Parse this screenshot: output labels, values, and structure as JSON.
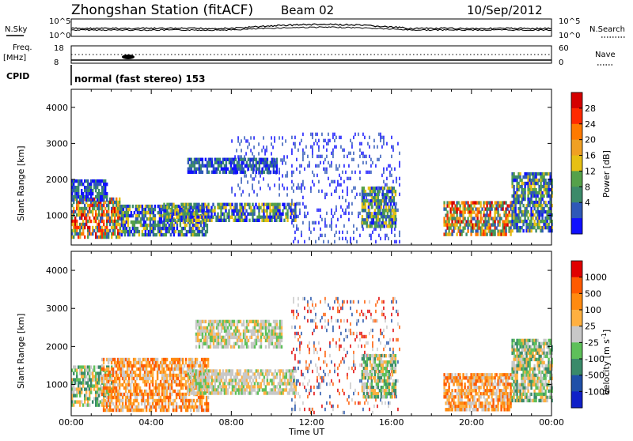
{
  "header": {
    "title": "Zhongshan Station (fitACF)",
    "beam": "Beam 02",
    "date": "10/Sep/2012"
  },
  "top_panels": {
    "nsky_label": "N.Sky",
    "nsky_ticks": [
      "10^5",
      "10^0"
    ],
    "nsearch_label": "N.Search",
    "nsearch_ticks": [
      "10^5",
      "10^0"
    ],
    "freq_label": "Freq.",
    "freq_unit": "[MHz]",
    "freq_ticks": [
      "18",
      "8"
    ],
    "nave_label": "Nave",
    "nave_ticks": [
      "60",
      "0"
    ],
    "cpid_label": "CPID",
    "cpid_text": "normal (fast stereo) 153"
  },
  "chart_data": [
    {
      "type": "heatmap",
      "name": "power",
      "ylabel": "Slant Range [km]",
      "ylim": [
        180,
        4500
      ],
      "yticks": [
        "1000",
        "2000",
        "3000",
        "4000"
      ],
      "xlim": [
        0,
        24
      ],
      "colorbar_label": "Power [dB]",
      "colorbar_ticks": [
        "4",
        "8",
        "12",
        "16",
        "20",
        "24",
        "28"
      ],
      "colorbar_colors": [
        "#1010ff",
        "#2f58b8",
        "#3c8a6a",
        "#55a14a",
        "#e6c014",
        "#f0a024",
        "#ff7a00",
        "#ff2a00",
        "#d40000"
      ],
      "regions": [
        {
          "t0": 0.0,
          "t1": 2.4,
          "r0": 400,
          "r1": 1500,
          "level": "high"
        },
        {
          "t0": 2.4,
          "t1": 6.8,
          "r0": 450,
          "r1": 1300,
          "level": "mid"
        },
        {
          "t0": 0.0,
          "t1": 1.8,
          "r0": 1400,
          "r1": 2000,
          "level": "low"
        },
        {
          "t0": 4.6,
          "t1": 11.2,
          "r0": 900,
          "r1": 1350,
          "level": "mid"
        },
        {
          "t0": 5.8,
          "t1": 10.3,
          "r0": 2200,
          "r1": 2600,
          "level": "low"
        },
        {
          "t0": 8.0,
          "t1": 10.8,
          "r0": 1600,
          "r1": 3200,
          "level": "sparse"
        },
        {
          "t0": 11.0,
          "t1": 16.4,
          "r0": 300,
          "r1": 3300,
          "level": "sparse"
        },
        {
          "t0": 14.5,
          "t1": 16.2,
          "r0": 700,
          "r1": 1800,
          "level": "mid"
        },
        {
          "t0": 18.6,
          "t1": 22.0,
          "r0": 450,
          "r1": 1400,
          "level": "high"
        },
        {
          "t0": 22.0,
          "t1": 24.0,
          "r0": 600,
          "r1": 2200,
          "level": "mid"
        }
      ]
    },
    {
      "type": "heatmap",
      "name": "velocity",
      "ylabel": "Slant Range [km]",
      "ylim": [
        180,
        4500
      ],
      "yticks": [
        "1000",
        "2000",
        "3000",
        "4000"
      ],
      "xlim": [
        0,
        24
      ],
      "colorbar_label": "Velocity [m s-1]",
      "colorbar_ticks": [
        "1000",
        "500",
        "100",
        "25",
        "-25",
        "-100",
        "-500",
        "-1000"
      ],
      "colorbar_colors": [
        "#1020c8",
        "#2050a8",
        "#3a8a6a",
        "#5ec05a",
        "#c8c8c8",
        "#ffb040",
        "#ff8a10",
        "#ff5a00",
        "#e00000"
      ],
      "regions": [
        {
          "t0": 0.0,
          "t1": 2.0,
          "r0": 450,
          "r1": 1500,
          "level": "green"
        },
        {
          "t0": 1.5,
          "t1": 6.8,
          "r0": 300,
          "r1": 1700,
          "level": "orange"
        },
        {
          "t0": 5.8,
          "t1": 11.2,
          "r0": 800,
          "r1": 1400,
          "level": "grey"
        },
        {
          "t0": 6.2,
          "t1": 10.5,
          "r0": 2000,
          "r1": 2700,
          "level": "grey"
        },
        {
          "t0": 11.0,
          "t1": 16.4,
          "r0": 300,
          "r1": 3300,
          "level": "red"
        },
        {
          "t0": 14.5,
          "t1": 16.2,
          "r0": 700,
          "r1": 1800,
          "level": "green"
        },
        {
          "t0": 18.6,
          "t1": 22.0,
          "r0": 350,
          "r1": 1300,
          "level": "orange"
        },
        {
          "t0": 22.0,
          "t1": 24.0,
          "r0": 600,
          "r1": 2200,
          "level": "green"
        }
      ]
    }
  ],
  "x_axis": {
    "label": "Time UT",
    "ticks": [
      "00:00",
      "04:00",
      "08:00",
      "12:00",
      "16:00",
      "20:00",
      "00:00"
    ]
  }
}
